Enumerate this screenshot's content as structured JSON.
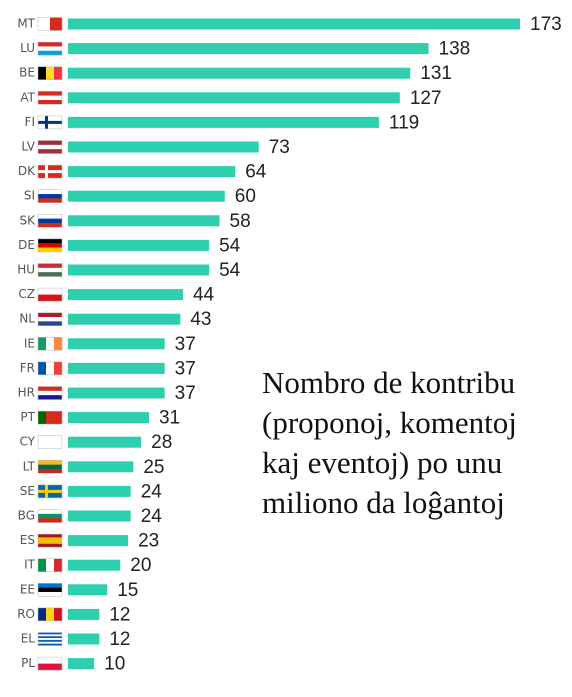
{
  "chart_data": {
    "type": "bar",
    "orientation": "horizontal",
    "categories": [
      "MT",
      "LU",
      "BE",
      "AT",
      "FI",
      "LV",
      "DK",
      "SI",
      "SK",
      "DE",
      "HU",
      "CZ",
      "NL",
      "IE",
      "FR",
      "HR",
      "PT",
      "CY",
      "LT",
      "SE",
      "BG",
      "ES",
      "IT",
      "EE",
      "RO",
      "EL",
      "PL"
    ],
    "values": [
      173,
      138,
      131,
      127,
      119,
      73,
      64,
      60,
      58,
      54,
      54,
      44,
      43,
      37,
      37,
      37,
      31,
      28,
      25,
      24,
      24,
      23,
      20,
      15,
      12,
      12,
      10
    ],
    "color": "#2ecfae",
    "annotation": [
      "Nombro de kontribu",
      "(proponoj, komentoj",
      "kaj eventoj) po unu",
      "miliono da loĝantoj"
    ]
  }
}
